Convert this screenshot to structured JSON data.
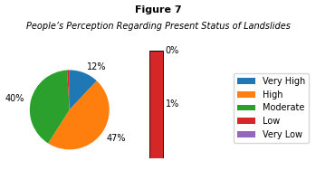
{
  "chart_data": {
    "type": "pie",
    "title": "Figure 7",
    "subtitle": "People’s Perception Regarding Present Status of Landslides",
    "categories": [
      "Very High",
      "High",
      "Moderate",
      "Low",
      "Very Low"
    ],
    "values": [
      12,
      47,
      40,
      1,
      0
    ],
    "value_labels": [
      "12%",
      "47%",
      "40%",
      "1%",
      "0%"
    ],
    "data_labels": true,
    "legend": "center right"
  }
}
